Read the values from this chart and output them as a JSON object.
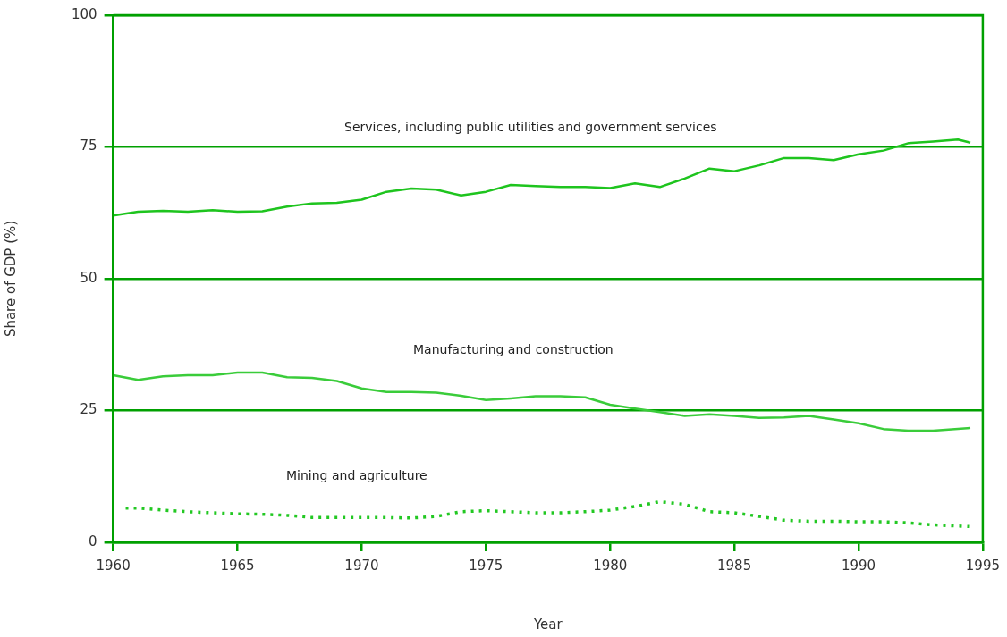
{
  "chart_data": {
    "type": "line",
    "xlabel": "Year",
    "ylabel": "Share of GDP (%)",
    "xlim": [
      1960,
      1995
    ],
    "xticks": [
      1960,
      1965,
      1970,
      1975,
      1980,
      1985,
      1990,
      1995
    ],
    "ylim": [
      0,
      100
    ],
    "yticks": [
      0,
      25,
      50,
      75,
      100
    ],
    "grid": "y",
    "legend": false,
    "marker": "none",
    "series": [
      {
        "name": "Services, including public utilities and government services",
        "color": "#1ec41e",
        "line_style": "solid",
        "x": [
          1960,
          1961,
          1962,
          1963,
          1964,
          1965,
          1966,
          1967,
          1968,
          1969,
          1970,
          1971,
          1972,
          1973,
          1974,
          1975,
          1976,
          1977,
          1978,
          1979,
          1980,
          1981,
          1982,
          1983,
          1984,
          1985,
          1986,
          1987,
          1988,
          1989,
          1990,
          1991,
          1992,
          1993,
          1994,
          1994.5
        ],
        "values": [
          62.0,
          62.7,
          62.9,
          62.7,
          63.0,
          62.7,
          62.8,
          63.7,
          64.3,
          64.4,
          65.0,
          66.5,
          67.1,
          66.9,
          65.8,
          66.5,
          67.8,
          67.6,
          67.4,
          67.4,
          67.2,
          68.1,
          67.4,
          69.0,
          70.9,
          70.4,
          71.5,
          72.9,
          72.9,
          72.5,
          73.6,
          74.3,
          75.7,
          76.0,
          76.4,
          75.8
        ]
      },
      {
        "name": "Manufacturing and construction",
        "color": "#3acc3a",
        "line_style": "solid",
        "x": [
          1960,
          1961,
          1962,
          1963,
          1964,
          1965,
          1966,
          1967,
          1968,
          1969,
          1970,
          1971,
          1972,
          1973,
          1974,
          1975,
          1976,
          1977,
          1978,
          1979,
          1980,
          1981,
          1982,
          1983,
          1984,
          1985,
          1986,
          1987,
          1988,
          1989,
          1990,
          1991,
          1992,
          1993,
          1994.5
        ],
        "values": [
          31.7,
          30.8,
          31.5,
          31.7,
          31.7,
          32.2,
          32.2,
          31.3,
          31.2,
          30.6,
          29.2,
          28.5,
          28.5,
          28.4,
          27.8,
          27.0,
          27.3,
          27.7,
          27.7,
          27.5,
          26.1,
          25.4,
          24.7,
          24.0,
          24.3,
          24.0,
          23.6,
          23.7,
          24.0,
          23.3,
          22.6,
          21.5,
          21.2,
          21.2,
          21.7
        ]
      },
      {
        "name": "Mining and agriculture",
        "color": "#22c822",
        "line_style": "dotted",
        "x": [
          1960.5,
          1961,
          1962,
          1963,
          1964,
          1965,
          1966,
          1967,
          1968,
          1969,
          1970,
          1971,
          1972,
          1973,
          1974,
          1975,
          1976,
          1977,
          1978,
          1979,
          1980,
          1981,
          1982,
          1983,
          1984,
          1985,
          1986,
          1987,
          1988,
          1989,
          1990,
          1991,
          1992,
          1993,
          1994.5
        ],
        "values": [
          6.5,
          6.5,
          6.1,
          5.8,
          5.6,
          5.4,
          5.3,
          5.1,
          4.7,
          4.7,
          4.7,
          4.7,
          4.6,
          4.9,
          5.8,
          6.0,
          5.8,
          5.6,
          5.6,
          5.8,
          6.1,
          6.8,
          7.7,
          7.2,
          5.8,
          5.6,
          4.9,
          4.2,
          4.0,
          4.0,
          3.9,
          3.9,
          3.7,
          3.3,
          3.0
        ]
      }
    ]
  }
}
